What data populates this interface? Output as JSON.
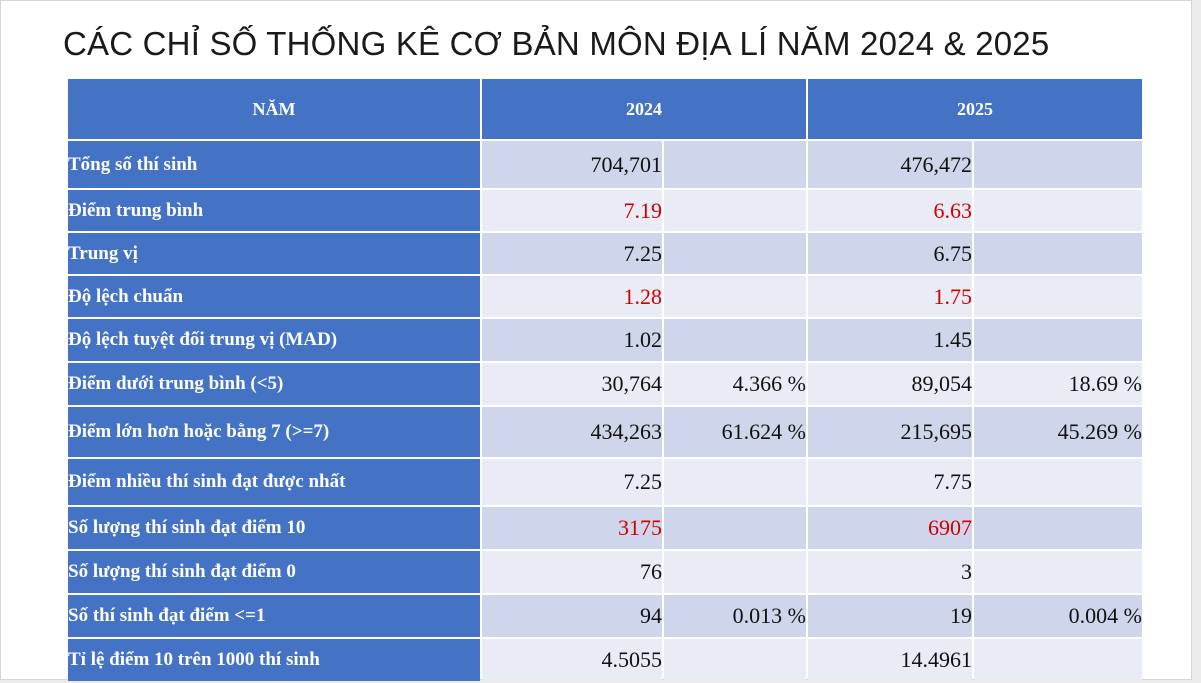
{
  "title": "CÁC CHỈ SỐ THỐNG KÊ CƠ BẢN MÔN ĐỊA LÍ NĂM 2024 & 2025",
  "colors": {
    "header_blue": "#4472c4",
    "row_light": "#e9ebf5",
    "row_dark": "#cfd5ea",
    "highlight_red": "#d00000"
  },
  "table": {
    "header": {
      "label": "NĂM",
      "year1": "2024",
      "year2": "2025"
    },
    "rows": [
      {
        "label": "Tổng số thí sinh",
        "v2024": "704,701",
        "p2024": "",
        "v2025": "476,472",
        "p2025": "",
        "highlight": false
      },
      {
        "label": "Điểm trung bình",
        "v2024": "7.19",
        "p2024": "",
        "v2025": "6.63",
        "p2025": "",
        "highlight": true
      },
      {
        "label": "Trung vị",
        "v2024": "7.25",
        "p2024": "",
        "v2025": "6.75",
        "p2025": "",
        "highlight": false
      },
      {
        "label": "Độ lệch chuẩn",
        "v2024": "1.28",
        "p2024": "",
        "v2025": "1.75",
        "p2025": "",
        "highlight": true
      },
      {
        "label": "Độ lệch tuyệt đối trung vị (MAD)",
        "v2024": "1.02",
        "p2024": "",
        "v2025": "1.45",
        "p2025": "",
        "highlight": false
      },
      {
        "label": "Điểm dưới trung bình (<5)",
        "v2024": "30,764",
        "p2024": "4.366 %",
        "v2025": "89,054",
        "p2025": "18.69 %",
        "highlight": false
      },
      {
        "label": "Điểm lớn hơn hoặc bằng 7 (>=7)",
        "v2024": "434,263",
        "p2024": "61.624 %",
        "v2025": "215,695",
        "p2025": "45.269 %",
        "highlight": false
      },
      {
        "label": "Điểm nhiều thí sinh đạt được nhất",
        "v2024": "7.25",
        "p2024": "",
        "v2025": "7.75",
        "p2025": "",
        "highlight": false
      },
      {
        "label": "Số lượng thí sinh đạt điểm 10",
        "v2024": "3175",
        "p2024": "",
        "v2025": "6907",
        "p2025": "",
        "highlight": true
      },
      {
        "label": "Số lượng thí sinh đạt điểm 0",
        "v2024": "76",
        "p2024": "",
        "v2025": "3",
        "p2025": "",
        "highlight": false
      },
      {
        "label": "Số thí sinh đạt điểm <=1",
        "v2024": "94",
        "p2024": "0.013 %",
        "v2025": "19",
        "p2025": "0.004 %",
        "highlight": false
      },
      {
        "label": "Tỉ lệ điểm 10 trên 1000 thí sinh",
        "v2024": "4.5055",
        "p2024": "",
        "v2025": "14.4961",
        "p2025": "",
        "highlight": false
      }
    ]
  }
}
